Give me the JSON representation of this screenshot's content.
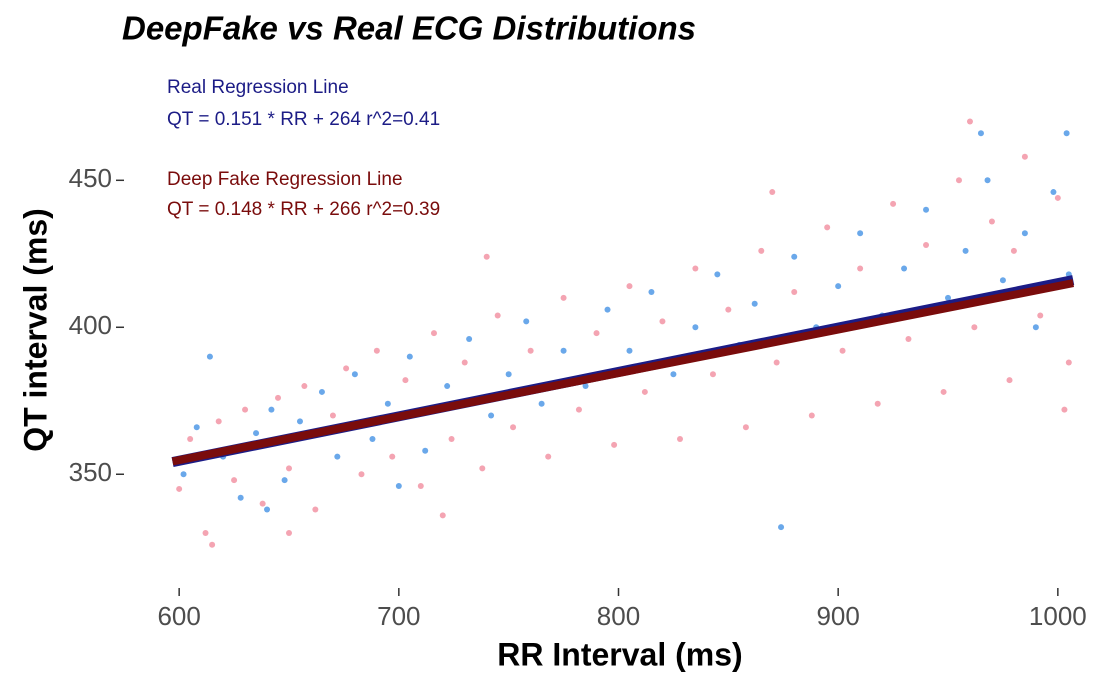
{
  "chart_data": {
    "type": "scatter",
    "title": "DeepFake vs Real ECG Distributions",
    "x_label": "RR Interval (ms)",
    "y_label": "QT interval (ms)",
    "xlim": [
      589,
      1011
    ],
    "ylim": [
      313,
      478
    ],
    "xticks": [
      600,
      700,
      800,
      900,
      1000
    ],
    "yticks": [
      350,
      400,
      450
    ],
    "grid": false,
    "series": [
      {
        "color": "#f4a4b2",
        "x": [
          600,
          605,
          612,
          618,
          625,
          630,
          638,
          645,
          650,
          657,
          662,
          670,
          676,
          683,
          690,
          697,
          703,
          710,
          716,
          724,
          730,
          738,
          745,
          752,
          760,
          768,
          775,
          782,
          790,
          798,
          805,
          812,
          820,
          828,
          835,
          843,
          850,
          858,
          865,
          872,
          880,
          888,
          895,
          902,
          910,
          918,
          925,
          932,
          940,
          948,
          955,
          962,
          970,
          978,
          985,
          992,
          1000,
          1005,
          615,
          740,
          870,
          960,
          1003,
          980,
          650,
          720
        ],
        "values": [
          345,
          362,
          330,
          368,
          348,
          372,
          340,
          376,
          352,
          380,
          338,
          370,
          386,
          350,
          392,
          356,
          382,
          346,
          398,
          362,
          388,
          352,
          404,
          366,
          392,
          356,
          410,
          372,
          398,
          360,
          414,
          378,
          402,
          362,
          420,
          384,
          406,
          366,
          426,
          388,
          412,
          370,
          434,
          392,
          420,
          374,
          442,
          396,
          428,
          378,
          450,
          400,
          436,
          382,
          458,
          404,
          444,
          388,
          326,
          424,
          446,
          470,
          372,
          426,
          330,
          336
        ]
      },
      {
        "color": "#6aa8ea",
        "x": [
          602,
          608,
          614,
          620,
          628,
          635,
          642,
          648,
          655,
          665,
          672,
          680,
          688,
          695,
          705,
          712,
          722,
          732,
          742,
          750,
          758,
          765,
          775,
          785,
          795,
          805,
          815,
          825,
          835,
          845,
          855,
          862,
          874,
          880,
          890,
          900,
          910,
          920,
          930,
          940,
          950,
          958,
          968,
          975,
          985,
          990,
          998,
          1005,
          1004,
          965,
          640,
          700
        ],
        "values": [
          350,
          366,
          390,
          356,
          342,
          364,
          372,
          348,
          368,
          378,
          356,
          384,
          362,
          374,
          390,
          358,
          380,
          396,
          370,
          384,
          402,
          374,
          392,
          380,
          406,
          392,
          412,
          384,
          400,
          418,
          394,
          408,
          332,
          424,
          400,
          414,
          432,
          404,
          420,
          440,
          410,
          426,
          450,
          416,
          432,
          400,
          446,
          418,
          466,
          466,
          338,
          346
        ]
      }
    ],
    "regression_lines": [
      {
        "label": "Real Regression Line",
        "equation": "QT = 0.151 * RR + 264  r^2=0.41",
        "color": "#1c1c86",
        "x": [
          597,
          1007
        ],
        "values": [
          354.15,
          416.06
        ]
      },
      {
        "label": "Deep Fake Regression Line",
        "equation": "QT = 0.148 * RR + 266  r^2=0.39",
        "color": "#7a0c0c",
        "x": [
          597,
          1007
        ],
        "values": [
          354.36,
          415.04
        ]
      }
    ]
  }
}
